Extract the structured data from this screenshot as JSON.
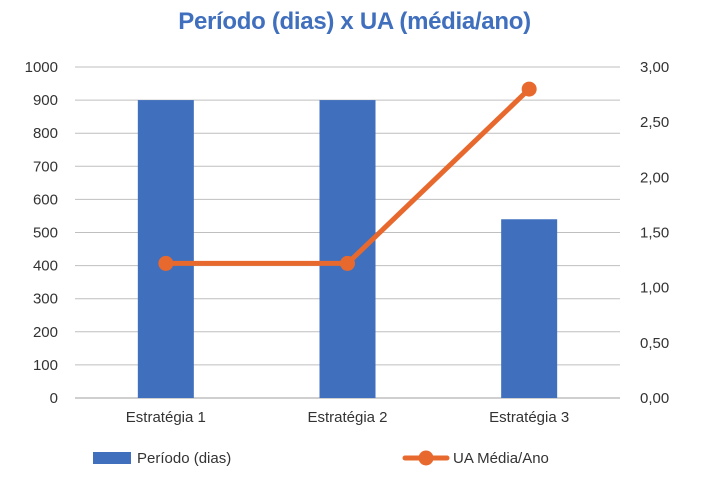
{
  "chart_data": {
    "type": "bar+line",
    "title": "Período (dias) x UA (média/ano)",
    "categories": [
      "Estratégia 1",
      "Estratégia 2",
      "Estratégia 3"
    ],
    "series": [
      {
        "name": "Período (dias)",
        "type": "bar",
        "axis": "left",
        "values": [
          900,
          900,
          540
        ]
      },
      {
        "name": "UA Média/Ano",
        "type": "line",
        "axis": "right",
        "values": [
          1.22,
          1.22,
          2.8
        ]
      }
    ],
    "ylim_left": [
      0,
      1000
    ],
    "ylim_right": [
      0,
      3
    ],
    "left_ticks": [
      "0",
      "100",
      "200",
      "300",
      "400",
      "500",
      "600",
      "700",
      "800",
      "900",
      "1000"
    ],
    "right_ticks": [
      "0,00",
      "0,50",
      "1,00",
      "1,50",
      "2,00",
      "2,50",
      "3,00"
    ],
    "grid": true,
    "legend_position": "bottom",
    "colors": {
      "bar": "#3f6fbd",
      "line": "#e8692e",
      "title": "#3f6fbd",
      "grid": "#bfbfbf"
    }
  }
}
